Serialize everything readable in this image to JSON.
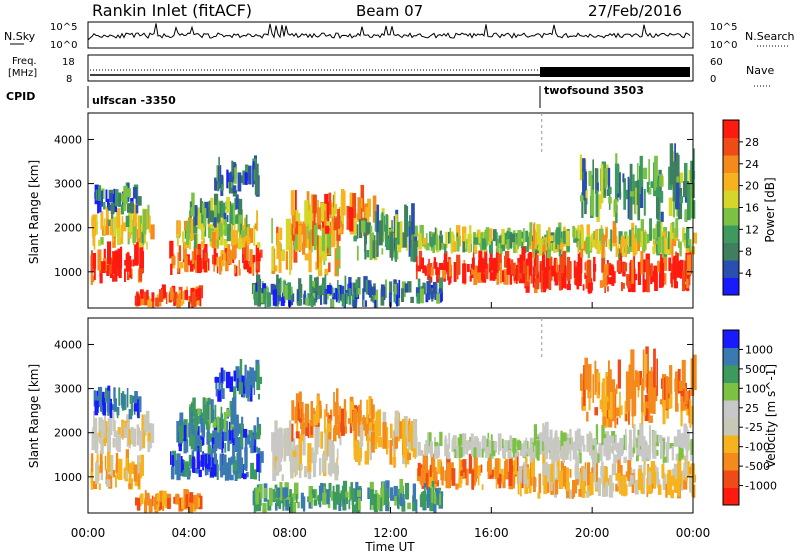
{
  "header": {
    "station": "Rankin Inlet (fitACF)",
    "beam": "Beam 07",
    "date": "27/Feb/2016"
  },
  "strip_labels": {
    "nsky": "N.Sky",
    "nsky_top": "10^5",
    "nsky_bot": "10^0",
    "nsearch": "N.Search",
    "nsearch_top": "10^5",
    "nsearch_bot": "10^0",
    "freq": "Freq.",
    "freq_unit": "[MHz]",
    "freq_top": "18",
    "freq_bot": "8",
    "nave": "Nave",
    "nave_top": "60",
    "nave_bot": "0",
    "cpid": "CPID",
    "cpid_a": "ulfscan -3350",
    "cpid_b": "twofsound 3503"
  },
  "colors": {
    "power": [
      "#1a1aff",
      "#2a4fb0",
      "#3f7f5f",
      "#3c9a5f",
      "#7bc244",
      "#d6d62a",
      "#f6b31e",
      "#f58a1c",
      "#f04a16",
      "#ff1a10"
    ],
    "velocity": [
      "#ff1a10",
      "#f04a16",
      "#f58a1c",
      "#f6b31e",
      "#c8c8b8",
      "#c8c8c8",
      "#7bc244",
      "#3c9a5f",
      "#3a7ab0",
      "#1a1aff"
    ]
  },
  "chart_data": [
    {
      "type": "heatmap",
      "title": "Power",
      "ylabel": "Slant Range [km]",
      "colorbar_label": "Power [dB]",
      "colorbar_ticks": [
        "4",
        "8",
        "12",
        "16",
        "20",
        "24",
        "28"
      ],
      "ylim": [
        180,
        4600
      ],
      "yticks": [
        "1000",
        "2000",
        "3000",
        "4000"
      ],
      "xticks": [
        "00:00",
        "04:00",
        "08:00",
        "12:00",
        "16:00",
        "20:00",
        "00:00"
      ],
      "xlabel": "Time UT"
    },
    {
      "type": "heatmap",
      "title": "Velocity",
      "ylabel": "Slant Range [km]",
      "colorbar_label": "Velocity [m s^-1]",
      "colorbar_ticks": [
        "1000",
        "500",
        "100",
        "25",
        "-25",
        "-100",
        "-500",
        "-1000"
      ],
      "ylim": [
        180,
        4600
      ],
      "yticks": [
        "1000",
        "2000",
        "3000",
        "4000"
      ],
      "xticks": [
        "00:00",
        "04:00",
        "08:00",
        "12:00",
        "16:00",
        "20:00",
        "00:00"
      ],
      "xlabel": "Time UT"
    }
  ]
}
